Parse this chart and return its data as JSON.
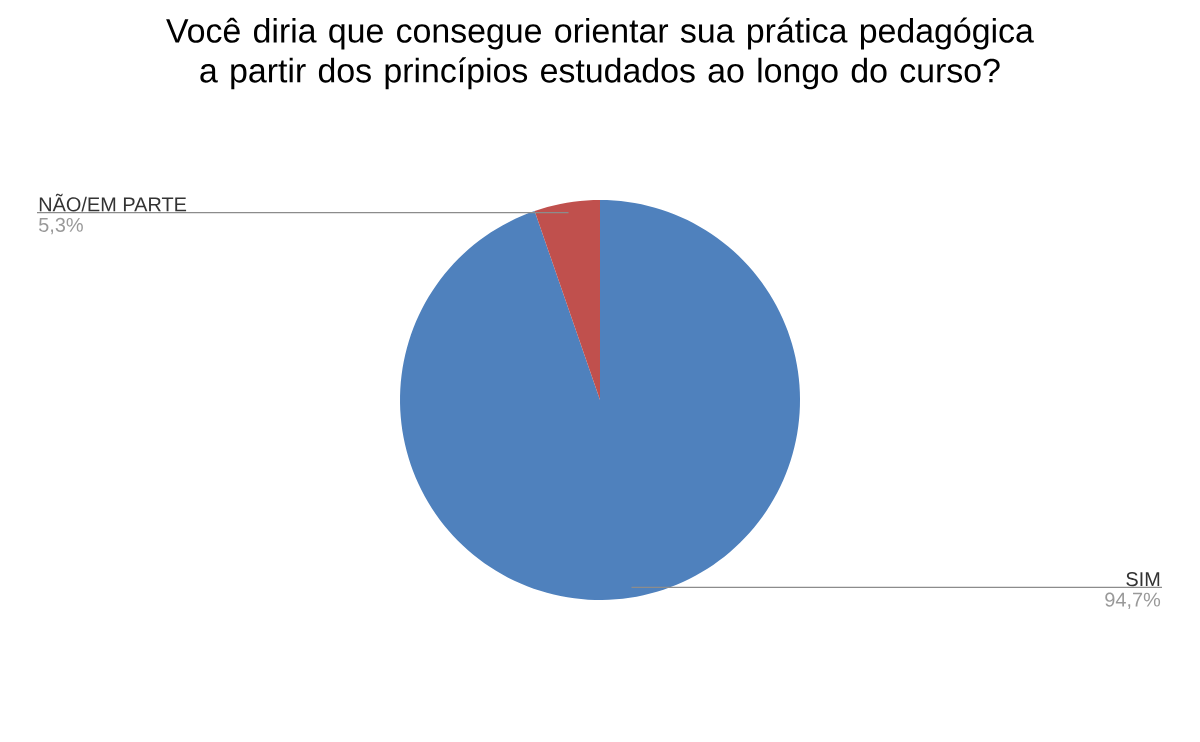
{
  "chart_data": {
    "type": "pie",
    "title": "Você diria que consegue orientar sua prática pedagógica a partir dos princípios estudados ao longo do curso?",
    "categories": [
      "SIM",
      "NÃO/EM PARTE"
    ],
    "values": [
      94.7,
      5.3
    ],
    "value_labels": [
      "94,7%",
      "5,3%"
    ],
    "colors": [
      "#4f81bd",
      "#c0504d"
    ]
  }
}
